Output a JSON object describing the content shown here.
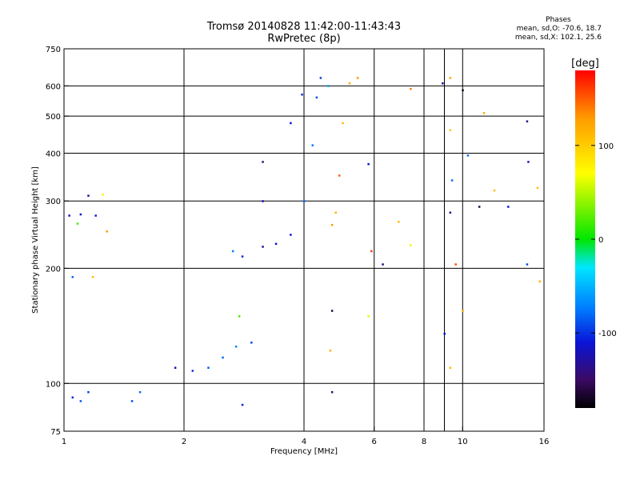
{
  "header": {
    "title_line1": "Tromsø 20140828 11:42:00-11:43:43",
    "title_line2": "RwPretec (8p)"
  },
  "phase_stats": {
    "heading": "Phases",
    "o_mode": "mean, sd,O: -70.6, 18.7",
    "x_mode": "mean, sd,X: 102.1, 25.6"
  },
  "chart_data": {
    "type": "scatter",
    "xlabel": "Frequency [MHz]",
    "ylabel": "Stationary phase Virtual Height [km]",
    "x_scale": "log",
    "y_scale": "log",
    "xlim": [
      1,
      16
    ],
    "ylim": [
      75,
      750
    ],
    "x_ticks": [
      1,
      2,
      4,
      6,
      8,
      10,
      16
    ],
    "x_tick_labels": [
      "1",
      "2",
      "4",
      "6",
      "8",
      "10",
      "16"
    ],
    "x_minor_ticks": [
      9
    ],
    "y_ticks": [
      75,
      100,
      200,
      300,
      400,
      500,
      600,
      750
    ],
    "y_tick_labels": [
      "75",
      "100",
      "200",
      "300",
      "400",
      "500",
      "600",
      "750"
    ],
    "grid": true,
    "colorbar": {
      "label": "[deg]",
      "range": [
        -180,
        180
      ],
      "ticks": [
        100,
        0,
        -100
      ],
      "tick_labels": [
        "100",
        "0",
        "-100"
      ],
      "colors": [
        "#000000",
        "#3b0a63",
        "#0a14d6",
        "#0078ff",
        "#00e6ff",
        "#00e600",
        "#ffff00",
        "#ff9900",
        "#ff0000"
      ]
    },
    "series": [
      {
        "points": [
          {
            "x": 1.05,
            "y": 92,
            "p": -105
          },
          {
            "x": 1.1,
            "y": 90,
            "p": -85
          },
          {
            "x": 1.15,
            "y": 95,
            "p": -95
          },
          {
            "x": 1.48,
            "y": 90,
            "p": -90
          },
          {
            "x": 1.55,
            "y": 95,
            "p": -80
          },
          {
            "x": 2.8,
            "y": 88,
            "p": -105
          },
          {
            "x": 1.03,
            "y": 275,
            "p": -120
          },
          {
            "x": 1.1,
            "y": 277,
            "p": -115
          },
          {
            "x": 1.2,
            "y": 275,
            "p": -105
          },
          {
            "x": 1.15,
            "y": 310,
            "p": -130
          },
          {
            "x": 1.25,
            "y": 312,
            "p": 80
          },
          {
            "x": 1.08,
            "y": 262,
            "p": 20
          },
          {
            "x": 1.28,
            "y": 250,
            "p": 130
          },
          {
            "x": 1.05,
            "y": 190,
            "p": -80
          },
          {
            "x": 1.18,
            "y": 190,
            "p": 110
          },
          {
            "x": 1.9,
            "y": 110,
            "p": -120
          },
          {
            "x": 2.1,
            "y": 108,
            "p": -100
          },
          {
            "x": 2.3,
            "y": 110,
            "p": -85
          },
          {
            "x": 2.5,
            "y": 117,
            "p": -80
          },
          {
            "x": 2.7,
            "y": 125,
            "p": -70
          },
          {
            "x": 2.95,
            "y": 128,
            "p": -90
          },
          {
            "x": 2.75,
            "y": 150,
            "p": 20
          },
          {
            "x": 2.65,
            "y": 222,
            "p": -75
          },
          {
            "x": 2.8,
            "y": 215,
            "p": -105
          },
          {
            "x": 3.15,
            "y": 228,
            "p": -130
          },
          {
            "x": 3.15,
            "y": 300,
            "p": -120
          },
          {
            "x": 3.15,
            "y": 380,
            "p": -140
          },
          {
            "x": 3.4,
            "y": 232,
            "p": -115
          },
          {
            "x": 3.7,
            "y": 245,
            "p": -110
          },
          {
            "x": 4.0,
            "y": 300,
            "p": -80
          },
          {
            "x": 4.2,
            "y": 420,
            "p": -75
          },
          {
            "x": 4.3,
            "y": 560,
            "p": -90
          },
          {
            "x": 4.4,
            "y": 630,
            "p": -95
          },
          {
            "x": 4.6,
            "y": 600,
            "p": -60
          },
          {
            "x": 4.7,
            "y": 260,
            "p": 130
          },
          {
            "x": 4.8,
            "y": 280,
            "p": 115
          },
          {
            "x": 4.9,
            "y": 350,
            "p": 150
          },
          {
            "x": 5.0,
            "y": 480,
            "p": 110
          },
          {
            "x": 5.2,
            "y": 610,
            "p": 120
          },
          {
            "x": 5.45,
            "y": 630,
            "p": 130
          },
          {
            "x": 3.7,
            "y": 480,
            "p": -110
          },
          {
            "x": 3.95,
            "y": 570,
            "p": -100
          },
          {
            "x": 4.7,
            "y": 155,
            "p": -160
          },
          {
            "x": 4.7,
            "y": 95,
            "p": -150
          },
          {
            "x": 4.65,
            "y": 122,
            "p": 115
          },
          {
            "x": 5.8,
            "y": 375,
            "p": -110
          },
          {
            "x": 5.9,
            "y": 222,
            "p": 160
          },
          {
            "x": 6.3,
            "y": 205,
            "p": -140
          },
          {
            "x": 6.9,
            "y": 265,
            "p": 110
          },
          {
            "x": 7.4,
            "y": 590,
            "p": 140
          },
          {
            "x": 7.4,
            "y": 230,
            "p": 80
          },
          {
            "x": 8.9,
            "y": 610,
            "p": -130
          },
          {
            "x": 9.3,
            "y": 630,
            "p": 120
          },
          {
            "x": 9.3,
            "y": 460,
            "p": 100
          },
          {
            "x": 9.4,
            "y": 340,
            "p": -80
          },
          {
            "x": 9.3,
            "y": 280,
            "p": -140
          },
          {
            "x": 9.0,
            "y": 135,
            "p": -110
          },
          {
            "x": 9.3,
            "y": 110,
            "p": 110
          },
          {
            "x": 10.0,
            "y": 585,
            "p": -170
          },
          {
            "x": 10.3,
            "y": 395,
            "p": -80
          },
          {
            "x": 10.0,
            "y": 155,
            "p": 115
          },
          {
            "x": 11.3,
            "y": 510,
            "p": 120
          },
          {
            "x": 12.0,
            "y": 320,
            "p": 110
          },
          {
            "x": 13.0,
            "y": 290,
            "p": -110
          },
          {
            "x": 14.5,
            "y": 485,
            "p": -140
          },
          {
            "x": 14.5,
            "y": 205,
            "p": -90
          },
          {
            "x": 14.6,
            "y": 380,
            "p": -120
          },
          {
            "x": 15.4,
            "y": 325,
            "p": 110
          },
          {
            "x": 15.6,
            "y": 185,
            "p": 115
          },
          {
            "x": 11.0,
            "y": 290,
            "p": -160
          },
          {
            "x": 9.6,
            "y": 205,
            "p": 155
          },
          {
            "x": 5.8,
            "y": 150,
            "p": 60
          }
        ]
      }
    ]
  }
}
